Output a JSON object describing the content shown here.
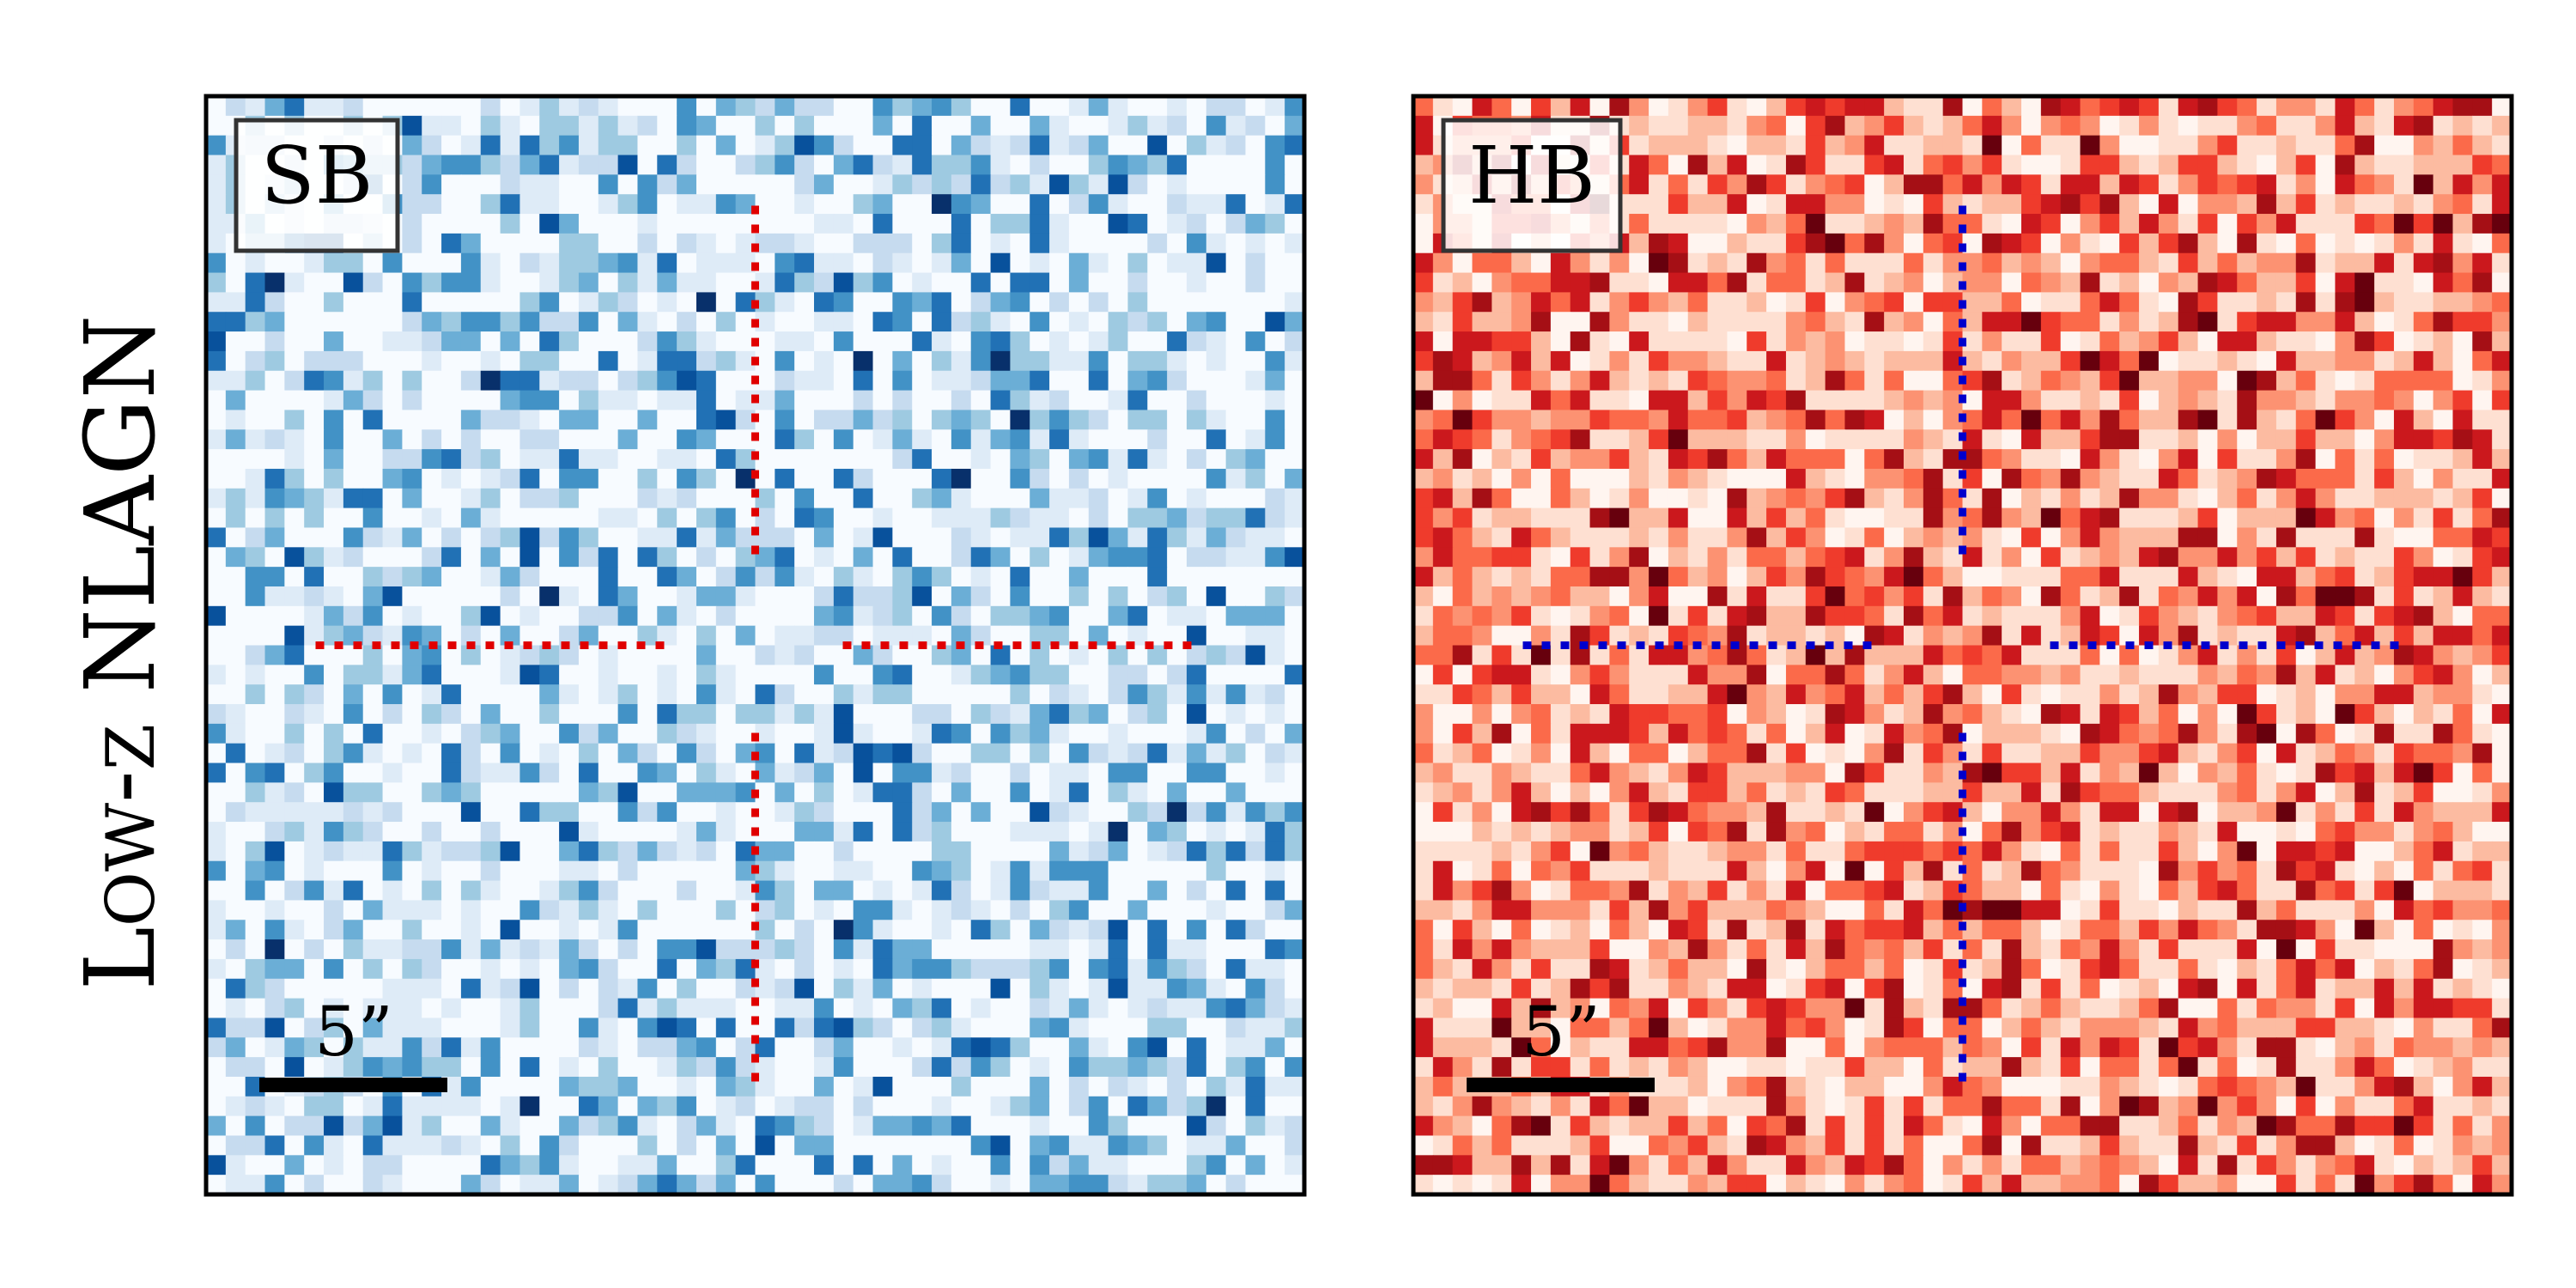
{
  "row_label": "Low-z NLAGN",
  "panels": [
    {
      "label": "SB",
      "scale_bar_label": "5”"
    },
    {
      "label": "HB",
      "scale_bar_label": "5”"
    }
  ]
}
